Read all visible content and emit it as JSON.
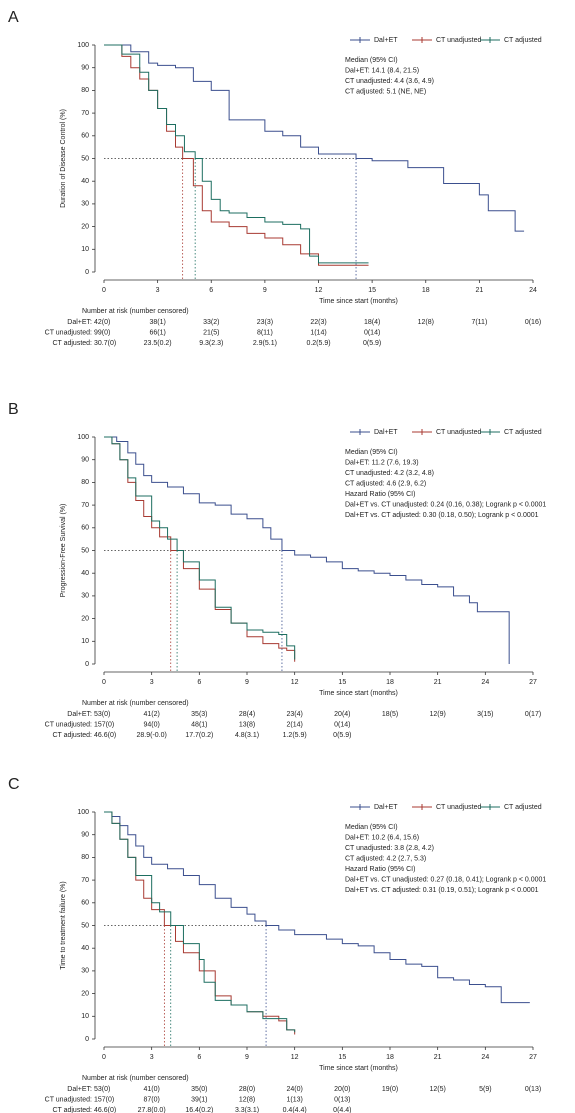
{
  "chart_data": [
    {
      "type": "line",
      "label": "A",
      "xlabel": "Time since start (months)",
      "ylabel": "Duration of Disease Control (%)",
      "xlim": [
        0,
        24
      ],
      "ylim": [
        0,
        100
      ],
      "xticks": [
        0,
        3,
        6,
        9,
        12,
        15,
        18,
        21,
        24
      ],
      "yticks": [
        0,
        10,
        20,
        30,
        40,
        50,
        60,
        70,
        80,
        90,
        100
      ],
      "series": [
        {
          "name": "Dal+ET",
          "color": "#3b4f8e",
          "x": [
            0,
            1.5,
            2.5,
            3,
            4,
            5,
            6,
            7,
            9,
            10,
            11,
            12,
            14.1,
            15,
            17,
            19,
            21,
            21.5,
            23,
            23.5
          ],
          "values": [
            100,
            97,
            92,
            91,
            90,
            84,
            80,
            67,
            62,
            60,
            55,
            52,
            50,
            49,
            46,
            39,
            34,
            27,
            18,
            18
          ]
        },
        {
          "name": "CT unadjusted",
          "color": "#a83a32",
          "x": [
            0,
            1,
            1.5,
            2,
            2.5,
            3,
            3.5,
            4,
            4.4,
            5,
            5.5,
            6,
            7,
            8,
            9,
            10,
            11,
            12,
            14.8
          ],
          "values": [
            100,
            95,
            90,
            85,
            80,
            72,
            62,
            55,
            50,
            38,
            27,
            22,
            20,
            17,
            15,
            12,
            8,
            3,
            3
          ]
        },
        {
          "name": "CT adjusted",
          "color": "#1d6e60",
          "x": [
            0,
            1,
            2,
            2.5,
            3,
            3.5,
            4,
            4.5,
            5.1,
            5.5,
            6,
            6.5,
            7,
            8,
            9,
            10,
            11,
            11.5,
            12,
            14.8
          ],
          "values": [
            100,
            96,
            88,
            80,
            72,
            65,
            60,
            53,
            50,
            40,
            32,
            27,
            26,
            24,
            22,
            21,
            19,
            7,
            4,
            4
          ]
        }
      ],
      "annotations": [
        {
          "text": "Median (95% CI)",
          "color": "#222222"
        },
        {
          "text": "Dal+ET: 14.1 (8.4, 21.5)",
          "color": "#3b4f8e"
        },
        {
          "text": "CT unadjusted: 4.4 (3.6, 4.9)",
          "color": "#a83a32"
        },
        {
          "text": "CT adjusted: 5.1 (NE, NE)",
          "color": "#1d6e60"
        }
      ],
      "risk_table": {
        "title": "Number at risk (number censored)",
        "rows": [
          {
            "name": "Dal+ET:",
            "color": "#3b4f8e",
            "values": [
              "42(0)",
              "38(1)",
              "33(2)",
              "23(3)",
              "22(3)",
              "18(4)",
              "12(8)",
              "7(11)",
              "0(16)"
            ]
          },
          {
            "name": "CT unadjusted:",
            "color": "#a83a32",
            "values": [
              "99(0)",
              "66(1)",
              "21(5)",
              "8(11)",
              "1(14)",
              "0(14)"
            ]
          },
          {
            "name": "CT adjusted:",
            "color": "#1d6e60",
            "values": [
              "30.7(0)",
              "23.5(0.2)",
              "9.3(2.3)",
              "2.9(5.1)",
              "0.2(5.9)",
              "0(5.9)"
            ]
          }
        ]
      }
    },
    {
      "type": "line",
      "label": "B",
      "xlabel": "Time since start (months)",
      "ylabel": "Progression-Free Survival (%)",
      "xlim": [
        0,
        27
      ],
      "ylim": [
        0,
        100
      ],
      "xticks": [
        0,
        3,
        6,
        9,
        12,
        15,
        18,
        21,
        24,
        27
      ],
      "yticks": [
        0,
        10,
        20,
        30,
        40,
        50,
        60,
        70,
        80,
        90,
        100
      ],
      "series": [
        {
          "name": "Dal+ET",
          "color": "#3b4f8e",
          "x": [
            0,
            0.8,
            1.5,
            2,
            2.5,
            3,
            4,
            5,
            6,
            7,
            8,
            9,
            10,
            10.5,
            11.2,
            12,
            13,
            14,
            15,
            16,
            17,
            18,
            19,
            20,
            21,
            22,
            23,
            23.5,
            25.5
          ],
          "values": [
            100,
            98,
            93,
            88,
            83,
            80,
            78,
            75,
            71,
            70,
            66,
            64,
            60,
            55,
            50,
            48,
            47,
            45,
            42,
            41,
            40,
            39,
            37,
            35,
            34,
            30,
            27,
            23,
            0
          ]
        },
        {
          "name": "CT unadjusted",
          "color": "#a83a32",
          "x": [
            0,
            0.5,
            1,
            1.5,
            2,
            2.5,
            3,
            3.5,
            4.2,
            5,
            6,
            7,
            8,
            9,
            10,
            11,
            11.5,
            12
          ],
          "values": [
            100,
            97,
            90,
            80,
            72,
            65,
            60,
            56,
            50,
            42,
            33,
            24,
            18,
            12,
            9,
            7,
            6,
            1
          ]
        },
        {
          "name": "CT adjusted",
          "color": "#1d6e60",
          "x": [
            0,
            0.5,
            1,
            1.5,
            2,
            3,
            3.5,
            4,
            4.6,
            5,
            6,
            7,
            8,
            9,
            10,
            11,
            11.5,
            12
          ],
          "values": [
            100,
            97,
            90,
            82,
            74,
            63,
            60,
            55,
            50,
            45,
            37,
            25,
            18,
            15,
            14,
            13,
            8,
            2
          ]
        }
      ],
      "annotations": [
        {
          "text": "Median (95% CI)",
          "color": "#222222"
        },
        {
          "text": "Dal+ET: 11.2 (7.6, 19.3)",
          "color": "#3b4f8e"
        },
        {
          "text": "CT unadjusted: 4.2 (3.2, 4.8)",
          "color": "#a83a32"
        },
        {
          "text": "CT adjusted: 4.6 (2.9, 6.2)",
          "color": "#1d6e60"
        },
        {
          "text": "Hazard Ratio (95% CI)",
          "color": "#222222"
        },
        {
          "text": "Dal+ET vs. CT unadjusted: 0.24 (0.16, 0.38); Logrank p < 0.0001",
          "color": "#a83a32"
        },
        {
          "text": "Dal+ET vs. CT adjusted: 0.30 (0.18, 0.50); Logrank p < 0.0001",
          "color": "#1d6e60"
        }
      ],
      "risk_table": {
        "title": "Number at risk (number censored)",
        "rows": [
          {
            "name": "Dal+ET:",
            "color": "#3b4f8e",
            "values": [
              "53(0)",
              "41(2)",
              "35(3)",
              "28(4)",
              "23(4)",
              "20(4)",
              "18(5)",
              "12(9)",
              "3(15)",
              "0(17)"
            ]
          },
          {
            "name": "CT unadjusted:",
            "color": "#a83a32",
            "values": [
              "157(0)",
              "94(0)",
              "48(1)",
              "13(8)",
              "2(14)",
              "0(14)"
            ]
          },
          {
            "name": "CT adjusted:",
            "color": "#1d6e60",
            "values": [
              "46.6(0)",
              "28.9(-0.0)",
              "17.7(0.2)",
              "4.8(3.1)",
              "1.2(5.9)",
              "0(5.9)"
            ]
          }
        ]
      }
    },
    {
      "type": "line",
      "label": "C",
      "xlabel": "Time since start (months)",
      "ylabel": "Time to treatment failure (%)",
      "xlim": [
        0,
        27
      ],
      "ylim": [
        0,
        100
      ],
      "xticks": [
        0,
        3,
        6,
        9,
        12,
        15,
        18,
        21,
        24,
        27
      ],
      "yticks": [
        0,
        10,
        20,
        30,
        40,
        50,
        60,
        70,
        80,
        90,
        100
      ],
      "series": [
        {
          "name": "Dal+ET",
          "color": "#3b4f8e",
          "x": [
            0,
            0.5,
            1,
            1.5,
            2,
            2.5,
            3,
            4,
            5,
            6,
            7,
            8,
            9,
            9.5,
            10.2,
            11,
            12,
            14,
            15,
            16,
            17,
            18,
            19,
            20,
            21,
            22,
            23,
            24,
            25,
            26.8
          ],
          "values": [
            100,
            98,
            94,
            90,
            85,
            80,
            77,
            75,
            72,
            68,
            62,
            58,
            55,
            52,
            50,
            48,
            46,
            44,
            42,
            41,
            38,
            35,
            33,
            32,
            27,
            26,
            24,
            23,
            16,
            16
          ]
        },
        {
          "name": "CT unadjusted",
          "color": "#a83a32",
          "x": [
            0,
            0.5,
            1,
            1.5,
            2,
            2.5,
            3,
            3.8,
            4.5,
            5,
            6,
            7,
            8,
            9,
            10,
            11,
            11.5,
            12
          ],
          "values": [
            100,
            95,
            88,
            80,
            70,
            62,
            57,
            50,
            43,
            38,
            30,
            19,
            15,
            12,
            10,
            8,
            4,
            2
          ]
        },
        {
          "name": "CT adjusted",
          "color": "#1d6e60",
          "x": [
            0,
            0.5,
            1,
            1.5,
            2,
            3,
            3.5,
            4.2,
            5,
            6,
            6.3,
            7,
            8,
            9,
            10,
            11,
            11.5,
            12
          ],
          "values": [
            100,
            95,
            88,
            80,
            72,
            60,
            56,
            50,
            42,
            35,
            25,
            17,
            15,
            12,
            9,
            9,
            4,
            3
          ]
        }
      ],
      "annotations": [
        {
          "text": "Median (95% CI)",
          "color": "#222222"
        },
        {
          "text": "Dal+ET: 10.2 (6.4, 15.6)",
          "color": "#3b4f8e"
        },
        {
          "text": "CT unadjusted: 3.8 (2.8, 4.2)",
          "color": "#a83a32"
        },
        {
          "text": "CT adjusted: 4.2 (2.7, 5.3)",
          "color": "#1d6e60"
        },
        {
          "text": "Hazard Ratio (95% CI)",
          "color": "#222222"
        },
        {
          "text": "Dal+ET vs. CT unadjusted: 0.27 (0.18, 0.41); Logrank p < 0.0001",
          "color": "#a83a32"
        },
        {
          "text": "Dal+ET vs. CT adjusted: 0.31 (0.19, 0.51); Logrank p < 0.0001",
          "color": "#1d6e60"
        }
      ],
      "risk_table": {
        "title": "Number at risk (number censored)",
        "rows": [
          {
            "name": "Dal+ET:",
            "color": "#3b4f8e",
            "values": [
              "53(0)",
              "41(0)",
              "35(0)",
              "28(0)",
              "24(0)",
              "20(0)",
              "19(0)",
              "12(5)",
              "5(9)",
              "0(13)"
            ]
          },
          {
            "name": "CT unadjusted:",
            "color": "#a83a32",
            "values": [
              "157(0)",
              "87(0)",
              "39(1)",
              "12(8)",
              "1(13)",
              "0(13)"
            ]
          },
          {
            "name": "CT adjusted:",
            "color": "#1d6e60",
            "values": [
              "46.6(0)",
              "27.8(0.0)",
              "16.4(0.2)",
              "3.3(3.1)",
              "0.4(4.4)",
              "0(4.4)"
            ]
          }
        ]
      }
    }
  ]
}
